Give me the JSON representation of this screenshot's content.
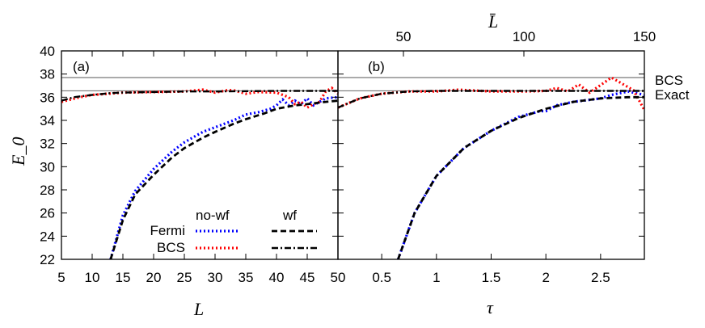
{
  "chart_data": [
    {
      "type": "line",
      "panel_label": "(a)",
      "xlabel": "L",
      "ylabel": "E_0",
      "xlim": [
        5,
        50
      ],
      "ylim": [
        22,
        40
      ],
      "xticks": [
        "5",
        "10",
        "15",
        "20",
        "25",
        "30",
        "35",
        "40",
        "45",
        "50"
      ],
      "yticks": [
        "22",
        "24",
        "26",
        "28",
        "30",
        "32",
        "34",
        "36",
        "38",
        "40"
      ],
      "series": [
        {
          "name": "Fermi no-wf",
          "color": "#0000ff",
          "style": "dotted",
          "x": [
            13,
            15,
            17,
            20,
            23,
            25,
            28,
            30,
            33,
            35,
            37,
            39,
            40,
            41,
            42,
            43,
            44,
            45,
            46,
            48,
            50
          ],
          "y": [
            22,
            25.8,
            27.9,
            29.8,
            31.3,
            32.1,
            33.0,
            33.4,
            34.0,
            34.5,
            34.7,
            35.0,
            35.3,
            35.8,
            35.3,
            35.7,
            35.4,
            35.9,
            35.3,
            35.9,
            36.0
          ]
        },
        {
          "name": "BCS no-wf",
          "color": "#ff0000",
          "style": "dotted",
          "x": [
            5,
            8,
            10,
            15,
            20,
            25,
            28,
            30,
            32,
            33,
            35,
            37,
            40,
            42,
            43,
            44,
            45,
            46,
            47,
            48,
            49,
            50
          ],
          "y": [
            35.6,
            36.0,
            36.2,
            36.4,
            36.45,
            36.5,
            36.65,
            36.4,
            36.6,
            36.6,
            36.3,
            36.45,
            36.4,
            36.0,
            35.4,
            35.6,
            35.1,
            35.4,
            35.6,
            36.5,
            36.8,
            36.3
          ]
        },
        {
          "name": "Fermi wf",
          "color": "#000000",
          "style": "dashed",
          "x": [
            13,
            15,
            17,
            20,
            23,
            25,
            28,
            30,
            33,
            35,
            38,
            40,
            43,
            45,
            48,
            50
          ],
          "y": [
            22,
            25.4,
            27.6,
            29.3,
            30.8,
            31.6,
            32.5,
            33.0,
            33.7,
            34.1,
            34.6,
            35.0,
            35.3,
            35.4,
            35.6,
            35.7
          ]
        },
        {
          "name": "BCS wf",
          "color": "#000000",
          "style": "dashdot",
          "x": [
            5,
            7,
            10,
            13,
            15,
            20,
            25,
            30,
            40,
            50
          ],
          "y": [
            35.7,
            36.0,
            36.2,
            36.35,
            36.4,
            36.45,
            36.5,
            36.5,
            36.55,
            36.55
          ]
        }
      ]
    },
    {
      "type": "line",
      "panel_label": "(b)",
      "xlabel": "τ",
      "top_xlabel": "L̄",
      "xlim": [
        0.1,
        2.9
      ],
      "ylim": [
        22,
        40
      ],
      "xticks": [
        "0.5",
        "1",
        "1.5",
        "2",
        "2.5"
      ],
      "top_xticks": [
        "50",
        "100",
        "150"
      ],
      "series": [
        {
          "name": "Fermi no-wf",
          "color": "#0000ff",
          "style": "dotted",
          "x": [
            0.65,
            0.8,
            1.0,
            1.25,
            1.5,
            1.75,
            1.95,
            2.0,
            2.1,
            2.25,
            2.5,
            2.6,
            2.75,
            2.9
          ],
          "y": [
            22,
            26,
            29.2,
            31.6,
            33.1,
            34.3,
            34.8,
            34.8,
            35.3,
            35.6,
            35.9,
            36.2,
            36.5,
            36.2
          ]
        },
        {
          "name": "BCS no-wf",
          "color": "#ff0000",
          "style": "dotted",
          "x": [
            0.1,
            0.3,
            0.5,
            0.75,
            1.0,
            1.2,
            1.5,
            1.8,
            2.0,
            2.1,
            2.2,
            2.3,
            2.4,
            2.6,
            2.8,
            2.9
          ],
          "y": [
            35.1,
            35.9,
            36.3,
            36.5,
            36.5,
            36.65,
            36.5,
            36.5,
            36.55,
            36.8,
            36.5,
            37.1,
            36.4,
            37.7,
            36.6,
            34.9
          ]
        },
        {
          "name": "Fermi wf",
          "color": "#000000",
          "style": "dashed",
          "x": [
            0.65,
            0.8,
            1.0,
            1.25,
            1.5,
            1.75,
            2.0,
            2.25,
            2.5,
            2.75,
            2.9
          ],
          "y": [
            22,
            26,
            29.2,
            31.6,
            33.1,
            34.2,
            35.0,
            35.6,
            35.9,
            36.0,
            36.0
          ]
        },
        {
          "name": "BCS wf",
          "color": "#000000",
          "style": "dashdot",
          "x": [
            0.1,
            0.3,
            0.5,
            0.75,
            1.0,
            2.0,
            2.9
          ],
          "y": [
            35.1,
            35.9,
            36.3,
            36.5,
            36.55,
            36.55,
            36.55
          ]
        }
      ]
    }
  ],
  "reference_lines": [
    {
      "label": "BCS",
      "value": 37.7
    },
    {
      "label": "Exact",
      "value": 36.55
    }
  ],
  "legend": {
    "col1": "no-wf",
    "col2": "wf",
    "row1": "Fermi",
    "row2": "BCS",
    "placement": "bottom-center of panel (a)"
  }
}
